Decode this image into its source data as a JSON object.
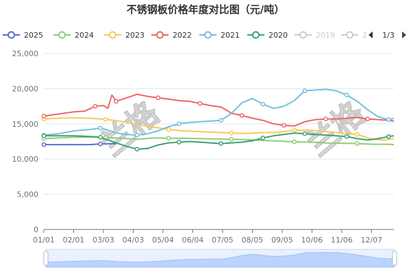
{
  "chart_data": {
    "type": "line",
    "title": "不锈钢板价格年度对比图（元/吨）",
    "xlabel": "",
    "ylabel": "",
    "x_ticks": [
      "01/01",
      "02/01",
      "03/03",
      "04/03",
      "05/04",
      "06/04",
      "07/05",
      "08/05",
      "09/05",
      "10/06",
      "11/06",
      "12/07"
    ],
    "ylim": [
      0,
      25000
    ],
    "y_ticks": [
      0,
      5000,
      10000,
      15000,
      20000,
      25000
    ],
    "y_tick_labels": [
      "0",
      "5,000",
      "10,000",
      "15,000",
      "20,000",
      "25,000"
    ],
    "grid": "horizontal",
    "legend_position": "top",
    "legend_pager": {
      "text": "1/3",
      "prev_icon": "triangle-left-icon",
      "next_icon": "triangle-right-icon"
    },
    "watermark_text": "兰格",
    "series": [
      {
        "name": "2025",
        "color": "#5470c6",
        "active": true,
        "points": [
          [
            1,
            12050
          ],
          [
            15,
            12050
          ],
          [
            30,
            12050
          ],
          [
            45,
            12050
          ],
          [
            55,
            12150
          ],
          [
            70,
            12200
          ]
        ]
      },
      {
        "name": "2024",
        "color": "#91cc75",
        "active": true,
        "points": [
          [
            1,
            12900
          ],
          [
            15,
            13000
          ],
          [
            30,
            13100
          ],
          [
            45,
            13100
          ],
          [
            60,
            13050
          ],
          [
            75,
            12950
          ],
          [
            90,
            12800
          ],
          [
            105,
            13000
          ],
          [
            120,
            12950
          ],
          [
            135,
            12950
          ],
          [
            150,
            12900
          ],
          [
            165,
            12850
          ],
          [
            180,
            12800
          ],
          [
            195,
            12750
          ],
          [
            210,
            12650
          ],
          [
            225,
            12550
          ],
          [
            240,
            12450
          ],
          [
            255,
            12400
          ],
          [
            270,
            12300
          ],
          [
            285,
            12250
          ],
          [
            300,
            12200
          ],
          [
            315,
            12100
          ],
          [
            330,
            12100
          ],
          [
            335,
            12050
          ]
        ]
      },
      {
        "name": "2023",
        "color": "#fac858",
        "active": true,
        "points": [
          [
            1,
            15700
          ],
          [
            15,
            15800
          ],
          [
            30,
            15850
          ],
          [
            45,
            15800
          ],
          [
            60,
            15650
          ],
          [
            75,
            15350
          ],
          [
            90,
            14900
          ],
          [
            105,
            14550
          ],
          [
            120,
            14200
          ],
          [
            135,
            14000
          ],
          [
            150,
            13900
          ],
          [
            165,
            13800
          ],
          [
            180,
            13700
          ],
          [
            195,
            13650
          ],
          [
            210,
            13750
          ],
          [
            225,
            13800
          ],
          [
            240,
            14100
          ],
          [
            255,
            14100
          ],
          [
            270,
            13900
          ],
          [
            285,
            13700
          ],
          [
            300,
            13500
          ],
          [
            315,
            12800
          ],
          [
            325,
            12700
          ],
          [
            335,
            12900
          ]
        ]
      },
      {
        "name": "2022",
        "color": "#ee6666",
        "active": true,
        "points": [
          [
            1,
            16100
          ],
          [
            15,
            16400
          ],
          [
            30,
            16700
          ],
          [
            40,
            16800
          ],
          [
            50,
            17500
          ],
          [
            58,
            17600
          ],
          [
            62,
            17200
          ],
          [
            66,
            19100
          ],
          [
            70,
            18200
          ],
          [
            80,
            18700
          ],
          [
            90,
            19200
          ],
          [
            100,
            18900
          ],
          [
            110,
            18700
          ],
          [
            120,
            18500
          ],
          [
            130,
            18300
          ],
          [
            140,
            18200
          ],
          [
            150,
            17900
          ],
          [
            160,
            17600
          ],
          [
            170,
            17400
          ],
          [
            180,
            16500
          ],
          [
            190,
            16200
          ],
          [
            200,
            15800
          ],
          [
            210,
            15500
          ],
          [
            220,
            15000
          ],
          [
            230,
            14800
          ],
          [
            240,
            14700
          ],
          [
            250,
            15300
          ],
          [
            260,
            15600
          ],
          [
            270,
            15700
          ],
          [
            280,
            15700
          ],
          [
            290,
            15800
          ],
          [
            300,
            15900
          ],
          [
            310,
            15700
          ],
          [
            320,
            15600
          ],
          [
            330,
            15500
          ],
          [
            335,
            15400
          ]
        ]
      },
      {
        "name": "2021",
        "color": "#73c0de",
        "active": true,
        "points": [
          [
            1,
            13400
          ],
          [
            15,
            13600
          ],
          [
            30,
            14000
          ],
          [
            45,
            14200
          ],
          [
            55,
            14400
          ],
          [
            60,
            14200
          ],
          [
            70,
            13700
          ],
          [
            80,
            13500
          ],
          [
            90,
            13400
          ],
          [
            100,
            13600
          ],
          [
            110,
            14000
          ],
          [
            120,
            14600
          ],
          [
            130,
            15000
          ],
          [
            140,
            15200
          ],
          [
            150,
            15300
          ],
          [
            160,
            15400
          ],
          [
            170,
            15500
          ],
          [
            180,
            16500
          ],
          [
            190,
            18000
          ],
          [
            200,
            18600
          ],
          [
            210,
            17800
          ],
          [
            220,
            17200
          ],
          [
            230,
            17500
          ],
          [
            240,
            18300
          ],
          [
            250,
            19700
          ],
          [
            260,
            19800
          ],
          [
            270,
            19900
          ],
          [
            280,
            19700
          ],
          [
            290,
            19100
          ],
          [
            300,
            18200
          ],
          [
            310,
            17000
          ],
          [
            320,
            16000
          ],
          [
            330,
            15600
          ],
          [
            335,
            15800
          ]
        ]
      },
      {
        "name": "2020",
        "color": "#3ba272",
        "active": true,
        "points": [
          [
            1,
            13300
          ],
          [
            15,
            13300
          ],
          [
            30,
            13300
          ],
          [
            45,
            13200
          ],
          [
            55,
            13100
          ],
          [
            60,
            12800
          ],
          [
            70,
            12300
          ],
          [
            80,
            11800
          ],
          [
            90,
            11400
          ],
          [
            100,
            11500
          ],
          [
            110,
            12000
          ],
          [
            120,
            12300
          ],
          [
            130,
            12400
          ],
          [
            140,
            12500
          ],
          [
            150,
            12400
          ],
          [
            160,
            12300
          ],
          [
            170,
            12200
          ],
          [
            180,
            12300
          ],
          [
            190,
            12400
          ],
          [
            200,
            12600
          ],
          [
            210,
            13000
          ],
          [
            220,
            13300
          ],
          [
            230,
            13500
          ],
          [
            240,
            13700
          ],
          [
            250,
            13600
          ],
          [
            260,
            13500
          ],
          [
            270,
            13400
          ],
          [
            280,
            13300
          ],
          [
            290,
            13200
          ],
          [
            300,
            12900
          ],
          [
            310,
            12700
          ],
          [
            320,
            12900
          ],
          [
            330,
            13200
          ],
          [
            335,
            13300
          ]
        ]
      },
      {
        "name": "2019",
        "color": "#cccccc",
        "active": false,
        "points": []
      },
      {
        "name": "2",
        "color": "#cccccc",
        "active": false,
        "points": []
      }
    ]
  }
}
